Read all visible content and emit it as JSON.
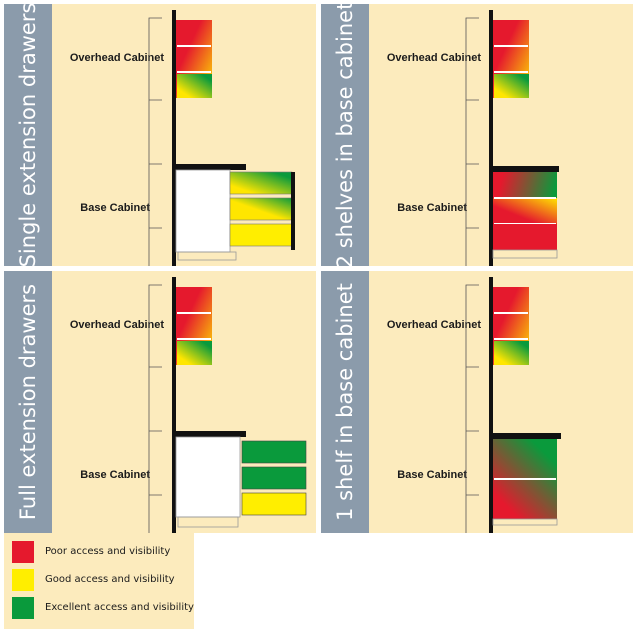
{
  "panels": [
    {
      "side_label": "Single extension drawers",
      "overhead_label": "Overhead Cabinet",
      "base_label": "Base Cabinet"
    },
    {
      "side_label": "2 shelves in base cabinet",
      "overhead_label": "Overhead Cabinet",
      "base_label": "Base Cabinet"
    },
    {
      "side_label": "Full extension drawers",
      "overhead_label": "Overhead Cabinet",
      "base_label": "Base Cabinet"
    },
    {
      "side_label": "1 shelf in base cabinet",
      "overhead_label": "Overhead Cabinet",
      "base_label": "Base Cabinet"
    }
  ],
  "legend": {
    "items": [
      {
        "label": "Poor access and visibility",
        "color": "#e5192d"
      },
      {
        "label": "Good access and visibility",
        "color": "#ffee00"
      },
      {
        "label": "Excellent access and visibility",
        "color": "#0a9a3c"
      }
    ]
  },
  "colors": {
    "panel_bg": "#fcebbd",
    "side_bar": "#8b9bab",
    "poor": "#e5192d",
    "good": "#ffee00",
    "excellent": "#0a9a3c"
  }
}
